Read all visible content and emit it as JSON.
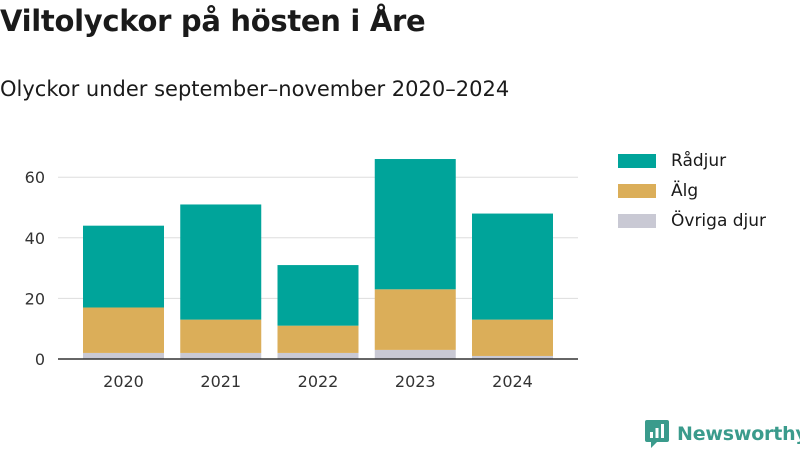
{
  "title": "Viltolyckor på hösten i Åre",
  "subtitle": "Olyckor under september–november 2020–2024",
  "brand": {
    "name": "Newsworthy",
    "color": "#3a9b8c"
  },
  "legend": [
    {
      "label": "Rådjur",
      "color": "#00a49a"
    },
    {
      "label": "Älg",
      "color": "#dbae59"
    },
    {
      "label": "Övriga djur",
      "color": "#c9c9d4"
    }
  ],
  "chart_data": {
    "type": "bar",
    "stacked": true,
    "title": "Viltolyckor på hösten i Åre",
    "subtitle": "Olyckor under september–november 2020–2024",
    "xlabel": "",
    "ylabel": "",
    "categories": [
      "2020",
      "2021",
      "2022",
      "2023",
      "2024"
    ],
    "yticks": [
      0,
      20,
      40,
      60
    ],
    "ylim": [
      0,
      70
    ],
    "grid": true,
    "legend_position": "right",
    "series": [
      {
        "name": "Övriga djur",
        "color": "#c9c9d4",
        "values": [
          2,
          2,
          2,
          3,
          1
        ]
      },
      {
        "name": "Älg",
        "color": "#dbae59",
        "values": [
          15,
          11,
          9,
          20,
          12
        ]
      },
      {
        "name": "Rådjur",
        "color": "#00a49a",
        "values": [
          27,
          38,
          20,
          43,
          35
        ]
      }
    ]
  }
}
